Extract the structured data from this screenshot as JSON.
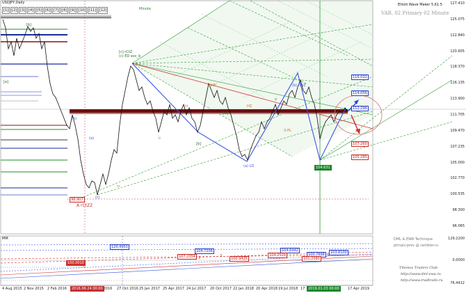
{
  "title": "USDJPY,Daily",
  "timeframes": [
    "[1]",
    "[2]",
    "[3]",
    "[4]",
    "[5]",
    "[6]",
    "[7]",
    "[8]",
    "[9]",
    "[10]",
    "[11]",
    "[12]"
  ],
  "timeframe_caption": "Minute",
  "indicator_title": "Elliott Wave Maker 5.61.5",
  "variant_label": "VAR. 02 Primary 02 Minute",
  "price_scale": [
    "127.410",
    "125.075",
    "122.840",
    "120.605",
    "118.370",
    "116.135",
    "113.900",
    "111.705",
    "109.470",
    "107.235",
    "105.000",
    "102.770",
    "100.535",
    "98.300",
    "96.065"
  ],
  "osc_scale": [
    "129.2200",
    "0.0000",
    "76.4412"
  ],
  "time_scale": [
    "4 Aug 2015",
    "2 Nov 2015",
    "2 Feb 2016",
    "",
    "15 Jul 2016",
    "27 Oct 2016",
    "25 Jan 2017",
    "25 Apr 2017",
    "24 Jul 2017",
    "20 Oct 2017",
    "22 Jan 2018",
    "20 Apr 2018",
    "19 Jul 2018",
    "17",
    "",
    "17 Apr 2019"
  ],
  "time_highlights": [
    "2016.06.24 00:00",
    "2019.01.03 00:00"
  ],
  "price_tags": {
    "t1": "116.032",
    "t2": "114.056",
    "t3": "112.296",
    "t4": "107.260",
    "t5": "105.285",
    "low": "98.907",
    "mark": "104.631"
  },
  "waves": {
    "top": "[c] rCtZ\n(c) ED exc_b",
    "wbPL": "W:PL",
    "rcz": "(b) rCtZ",
    "hz": "HZ",
    "xpl": "X:PL",
    "ld": "(a) LD",
    "a_lo": "A rCtZZ",
    "b_top": "[b]",
    "a_lbl": "[a]",
    "paren_a": "(a)",
    "paren_b": "(b)",
    "paren_c": "(c)",
    "b_low": "[b]",
    "iii": "iii",
    "ii": "ii",
    "iv": "iv",
    "v": "v",
    "w": "[w]"
  },
  "osc_title": "MM",
  "osc_tags": {
    "o1": "120.4953",
    "o2": "104.7206",
    "o3": "107.2354",
    "o4": "100.9425",
    "o5": "104.6442",
    "o6": "104.2509",
    "o7": "100.7698",
    "o8": "103.8100",
    "o9": "101.2080",
    "o10": "100.0010"
  },
  "osc_marks": {
    "m1": "1",
    "m2": "1",
    "m3": "0",
    "m4": "3",
    "m5": "5"
  },
  "branding": {
    "line1": "DML & EWA Technique",
    "line2": "ptmaiz-prev @ rambler.ru",
    "line3": "Tihonov   Traders   Club",
    "line4": "http://www.dml-ewa.ru",
    "line5": "http://www.tradtrade.ru"
  },
  "colors": {
    "green_fan": "#2f9a2f",
    "red_line": "#d03030",
    "blue_zig": "#3a55e0",
    "dark_red_band": "#6a1010"
  }
}
